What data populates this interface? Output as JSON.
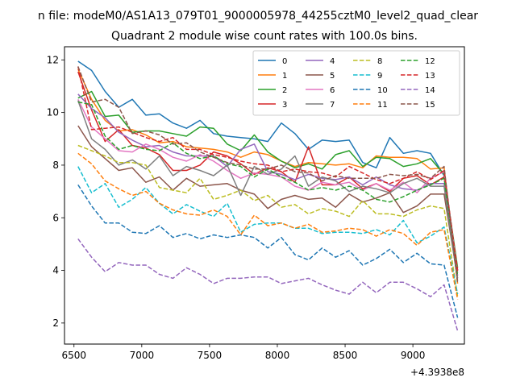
{
  "figure": {
    "suptitle": "n file: modeM0/AS1A13_079T01_9000005978_44255cztM0_level2_quad_clear",
    "offset_text": "+4.3938e8"
  },
  "chart_data": {
    "type": "line",
    "title": "Quadrant 2 module wise count rates with 100.0s bins.",
    "xlabel": "",
    "ylabel": "",
    "xlim": [
      6430,
      9380
    ],
    "ylim": [
      1.2,
      12.5
    ],
    "xticks": [
      6500,
      7000,
      7500,
      8000,
      8500,
      9000
    ],
    "xtick_labels": [
      "6500",
      "7000",
      "7500",
      "8000",
      "8500",
      "9000"
    ],
    "yticks": [
      2,
      4,
      6,
      8,
      10,
      12
    ],
    "ytick_labels": [
      "2",
      "4",
      "6",
      "8",
      "10",
      "12"
    ],
    "grid": false,
    "legend": {
      "placement": "upper-right",
      "columns": 4
    },
    "x": [
      6530,
      6630,
      6730,
      6830,
      6930,
      7030,
      7130,
      7230,
      7330,
      7430,
      7530,
      7630,
      7730,
      7830,
      7930,
      8030,
      8130,
      8230,
      8330,
      8430,
      8530,
      8630,
      8730,
      8830,
      8930,
      9030,
      9130,
      9230,
      9330
    ],
    "series": [
      {
        "name": "0",
        "color": "#1f77b4",
        "dash": "solid",
        "values": [
          11.95,
          11.6,
          10.8,
          10.2,
          10.5,
          9.9,
          9.95,
          9.6,
          9.4,
          9.7,
          9.2,
          9.1,
          9.05,
          9.0,
          8.9,
          9.6,
          9.2,
          8.6,
          8.95,
          8.9,
          8.95,
          8.1,
          7.9,
          9.05,
          8.45,
          8.55,
          8.45,
          7.6,
          4.0
        ]
      },
      {
        "name": "1",
        "color": "#ff7f0e",
        "dash": "solid",
        "values": [
          11.65,
          10.5,
          9.7,
          9.3,
          9.35,
          9.15,
          8.85,
          8.9,
          8.7,
          8.65,
          8.6,
          8.5,
          8.3,
          8.5,
          8.4,
          8.15,
          7.95,
          8.1,
          8.05,
          8.0,
          8.05,
          7.9,
          8.35,
          8.3,
          8.3,
          8.25,
          7.85,
          7.9,
          3.5
        ]
      },
      {
        "name": "2",
        "color": "#2ca02c",
        "dash": "solid",
        "values": [
          10.55,
          10.8,
          9.85,
          9.9,
          9.25,
          9.3,
          9.3,
          9.2,
          9.1,
          9.45,
          9.4,
          8.8,
          8.55,
          9.15,
          8.5,
          8.15,
          7.9,
          8.05,
          7.85,
          8.4,
          8.55,
          7.95,
          8.3,
          8.25,
          7.95,
          8.05,
          8.25,
          7.65,
          4.1
        ]
      },
      {
        "name": "3",
        "color": "#d62728",
        "dash": "solid",
        "values": [
          11.55,
          10.1,
          8.9,
          9.35,
          8.75,
          8.65,
          8.4,
          7.8,
          7.8,
          8.0,
          8.5,
          8.35,
          8.05,
          7.65,
          7.9,
          7.75,
          7.35,
          8.7,
          7.25,
          7.25,
          7.55,
          7.1,
          7.3,
          7.0,
          7.5,
          7.6,
          7.25,
          7.55,
          4.0
        ]
      },
      {
        "name": "4",
        "color": "#9467bd",
        "dash": "solid",
        "values": [
          10.7,
          10.15,
          9.8,
          9.25,
          8.95,
          8.7,
          8.75,
          8.5,
          8.35,
          8.35,
          8.35,
          7.95,
          8.6,
          8.8,
          7.75,
          7.65,
          7.45,
          7.65,
          7.5,
          7.45,
          7.55,
          7.25,
          7.55,
          7.25,
          7.1,
          7.05,
          7.3,
          7.3,
          3.8
        ]
      },
      {
        "name": "5",
        "color": "#8c564b",
        "dash": "solid",
        "values": [
          9.5,
          8.7,
          8.25,
          7.8,
          7.9,
          7.35,
          7.55,
          7.05,
          7.5,
          7.2,
          7.25,
          7.3,
          7.05,
          6.9,
          6.35,
          6.7,
          6.85,
          6.7,
          6.75,
          6.4,
          6.9,
          6.6,
          6.75,
          6.95,
          6.2,
          6.45,
          6.9,
          6.9,
          3.7
        ]
      },
      {
        "name": "6",
        "color": "#e377c2",
        "dash": "solid",
        "values": [
          10.5,
          9.45,
          9.0,
          8.55,
          8.5,
          8.8,
          8.6,
          8.3,
          8.15,
          8.4,
          8.15,
          7.8,
          7.5,
          7.7,
          7.65,
          7.55,
          7.2,
          7.05,
          7.35,
          7.25,
          7.35,
          7.05,
          7.3,
          7.05,
          7.35,
          6.95,
          7.5,
          7.75,
          3.9
        ]
      },
      {
        "name": "7",
        "color": "#7f7f7f",
        "dash": "solid",
        "values": [
          10.45,
          9.0,
          8.6,
          8.0,
          8.2,
          7.85,
          8.35,
          7.6,
          7.95,
          7.8,
          7.6,
          8.0,
          6.85,
          7.95,
          7.65,
          7.85,
          8.35,
          7.2,
          7.55,
          7.4,
          7.0,
          7.2,
          7.1,
          6.95,
          7.3,
          7.5,
          7.2,
          7.2,
          3.6
        ]
      },
      {
        "name": "8",
        "color": "#bcbd22",
        "dash": "dashed",
        "values": [
          8.75,
          8.55,
          8.35,
          8.1,
          8.1,
          8.0,
          7.15,
          7.05,
          6.95,
          7.5,
          6.7,
          6.85,
          7.05,
          6.65,
          6.85,
          6.4,
          6.5,
          6.15,
          6.35,
          6.25,
          6.05,
          6.65,
          6.15,
          6.15,
          6.05,
          6.3,
          6.45,
          6.35,
          3.0
        ]
      },
      {
        "name": "9",
        "color": "#17becf",
        "dash": "dashed",
        "values": [
          7.95,
          6.95,
          7.3,
          6.4,
          6.7,
          7.15,
          6.55,
          6.15,
          6.5,
          6.25,
          6.05,
          6.55,
          5.45,
          5.75,
          5.8,
          5.8,
          5.6,
          5.6,
          5.4,
          5.45,
          5.45,
          5.4,
          5.55,
          5.35,
          5.9,
          5.05,
          5.3,
          5.65,
          3.1
        ]
      },
      {
        "name": "10",
        "color": "#1f77b4",
        "dash": "dashed",
        "values": [
          7.25,
          6.45,
          5.8,
          5.8,
          5.45,
          5.4,
          5.7,
          5.25,
          5.4,
          5.2,
          5.35,
          5.25,
          5.35,
          5.25,
          4.85,
          5.25,
          4.6,
          4.4,
          4.85,
          4.5,
          4.75,
          4.2,
          4.45,
          4.8,
          4.3,
          4.65,
          4.25,
          4.2,
          2.2
        ]
      },
      {
        "name": "11",
        "color": "#ff7f0e",
        "dash": "dashed",
        "values": [
          8.45,
          8.05,
          7.4,
          7.1,
          6.85,
          7.0,
          6.55,
          6.3,
          6.15,
          6.1,
          6.3,
          6.05,
          5.35,
          6.1,
          5.7,
          5.8,
          5.6,
          5.75,
          5.45,
          5.5,
          5.6,
          5.55,
          5.3,
          5.55,
          5.4,
          4.95,
          5.45,
          5.55,
          2.9
        ]
      },
      {
        "name": "12",
        "color": "#2ca02c",
        "dash": "dashed",
        "values": [
          10.4,
          10.3,
          9.1,
          8.6,
          8.75,
          8.6,
          8.55,
          8.85,
          8.45,
          8.25,
          8.35,
          8.05,
          7.95,
          7.55,
          7.85,
          7.55,
          7.35,
          7.05,
          7.15,
          7.05,
          7.2,
          7.05,
          6.7,
          6.6,
          6.8,
          7.05,
          7.25,
          7.5,
          3.8
        ]
      },
      {
        "name": "13",
        "color": "#d62728",
        "dash": "dashed",
        "values": [
          11.75,
          9.35,
          9.4,
          9.45,
          9.25,
          9.05,
          8.9,
          9.05,
          8.6,
          8.6,
          8.4,
          8.3,
          8.15,
          8.05,
          8.0,
          7.75,
          7.85,
          7.75,
          7.7,
          7.55,
          7.95,
          7.7,
          7.45,
          7.3,
          7.5,
          7.75,
          7.45,
          7.8,
          3.9
        ]
      },
      {
        "name": "14",
        "color": "#9467bd",
        "dash": "dashed",
        "values": [
          5.2,
          4.5,
          3.95,
          4.3,
          4.2,
          4.2,
          3.85,
          3.7,
          4.1,
          3.85,
          3.5,
          3.7,
          3.7,
          3.75,
          3.75,
          3.5,
          3.6,
          3.7,
          3.45,
          3.25,
          3.1,
          3.55,
          3.15,
          3.55,
          3.55,
          3.3,
          3.0,
          3.45,
          1.7
        ]
      },
      {
        "name": "15",
        "color": "#8c564b",
        "dash": "dashed",
        "values": [
          11.75,
          10.4,
          10.5,
          10.2,
          9.2,
          9.3,
          9.15,
          8.8,
          8.85,
          8.5,
          8.3,
          8.1,
          8.0,
          7.85,
          7.85,
          8.0,
          7.75,
          7.7,
          7.4,
          7.6,
          7.5,
          7.5,
          7.5,
          7.65,
          7.6,
          7.65,
          7.5,
          7.95,
          3.5
        ]
      }
    ]
  }
}
